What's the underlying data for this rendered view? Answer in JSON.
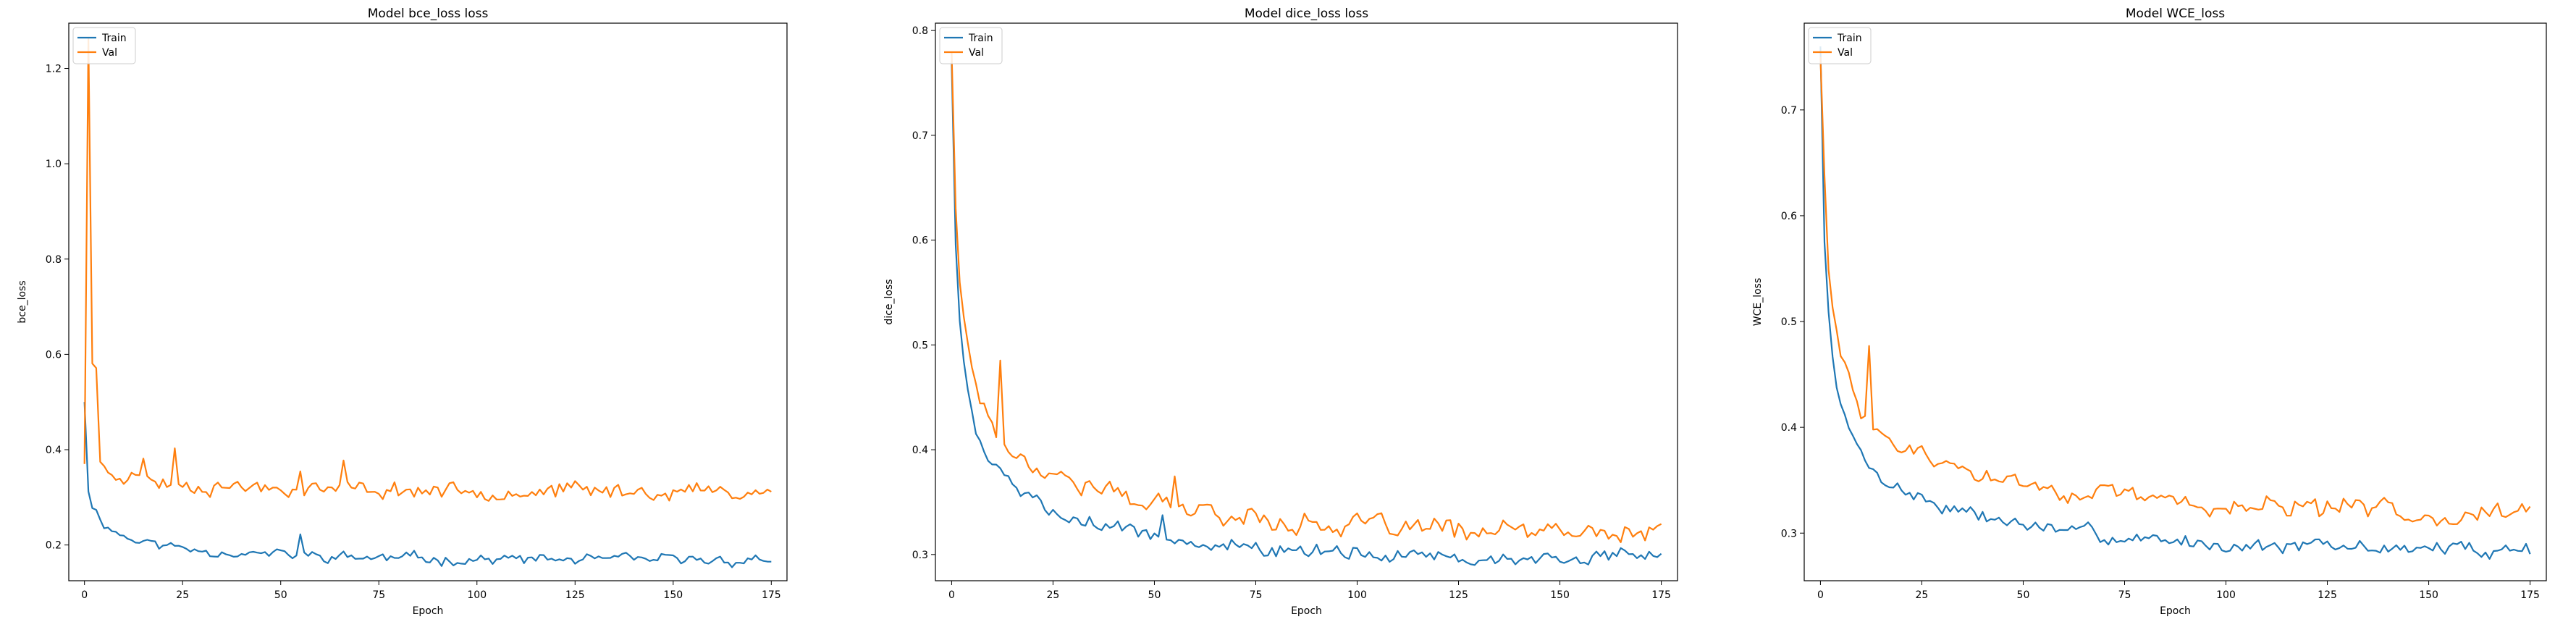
{
  "chart_data": [
    {
      "type": "line",
      "title": "Model bce_loss loss",
      "xlabel": "Epoch",
      "ylabel": "bce_loss",
      "xlim": [
        -4,
        179
      ],
      "ylim": [
        0.125,
        1.295
      ],
      "xticks": [
        0,
        25,
        50,
        75,
        100,
        125,
        150,
        175
      ],
      "yticks": [
        0.2,
        0.4,
        0.6,
        0.8,
        1.0,
        1.2
      ],
      "xtick_labels": [
        "0",
        "25",
        "50",
        "75",
        "100",
        "125",
        "150",
        "175"
      ],
      "ytick_labels": [
        "0.2",
        "0.4",
        "0.6",
        "0.8",
        "1.0",
        "1.2"
      ],
      "legend_position": "upper-left",
      "series": [
        {
          "name": "Train",
          "color": "#1f77b4",
          "start": 0.5,
          "k1": 0.18,
          "r1": 0.4,
          "k2": 0.1,
          "r2": 4.0,
          "k3": 0.06,
          "r3": 30,
          "base": 0.168,
          "noise": 0.008,
          "seed": 11,
          "spikes": [
            [
              55,
              0.045
            ]
          ]
        },
        {
          "name": "Val",
          "color": "#ff7f0e",
          "start": 0.37,
          "k1": 0.09,
          "r1": 0.5,
          "k2": 0.07,
          "r2": 6.0,
          "k3": 0.03,
          "r3": 40,
          "base": 0.312,
          "noise": 0.012,
          "seed": 23,
          "spikes": [
            [
              1,
              0.86
            ],
            [
              2,
              0.19
            ],
            [
              3,
              0.18
            ],
            [
              15,
              0.05
            ],
            [
              23,
              0.07
            ],
            [
              55,
              0.05
            ],
            [
              66,
              0.05
            ]
          ]
        }
      ]
    },
    {
      "type": "line",
      "title": "Model dice_loss loss",
      "xlabel": "Epoch",
      "ylabel": "dice_loss",
      "xlim": [
        -4,
        179
      ],
      "ylim": [
        0.275,
        0.807
      ],
      "xticks": [
        0,
        25,
        50,
        75,
        100,
        125,
        150,
        175
      ],
      "yticks": [
        0.3,
        0.4,
        0.5,
        0.6,
        0.7,
        0.8
      ],
      "xtick_labels": [
        "0",
        "25",
        "50",
        "75",
        "100",
        "125",
        "150",
        "175"
      ],
      "ytick_labels": [
        "0.3",
        "0.4",
        "0.5",
        "0.6",
        "0.7",
        "0.8"
      ],
      "legend_position": "upper-left",
      "series": [
        {
          "name": "Train",
          "color": "#1f77b4",
          "start": 0.77,
          "k1": 0.17,
          "r1": 0.8,
          "k2": 0.2,
          "r2": 4.0,
          "k3": 0.1,
          "r3": 35,
          "base": 0.295,
          "noise": 0.005,
          "seed": 5,
          "spikes": [
            [
              52,
              0.02
            ]
          ]
        },
        {
          "name": "Val",
          "color": "#ff7f0e",
          "start": 0.78,
          "k1": 0.16,
          "r1": 0.8,
          "k2": 0.2,
          "r2": 4.5,
          "k3": 0.11,
          "r3": 40,
          "base": 0.318,
          "noise": 0.007,
          "seed": 17,
          "spikes": [
            [
              12,
              0.07
            ],
            [
              55,
              0.02
            ]
          ]
        }
      ]
    },
    {
      "type": "line",
      "title": "Model WCE_loss",
      "xlabel": "Epoch",
      "ylabel": "WCE_loss",
      "xlim": [
        -4,
        179
      ],
      "ylim": [
        0.255,
        0.782
      ],
      "xticks": [
        0,
        25,
        50,
        75,
        100,
        125,
        150,
        175
      ],
      "yticks": [
        0.3,
        0.4,
        0.5,
        0.6,
        0.7
      ],
      "xtick_labels": [
        "0",
        "25",
        "50",
        "75",
        "100",
        "125",
        "150",
        "175"
      ],
      "ytick_labels": [
        "0.3",
        "0.4",
        "0.5",
        "0.6",
        "0.7"
      ],
      "legend_position": "upper-left",
      "series": [
        {
          "name": "Train",
          "color": "#1f77b4",
          "start": 0.76,
          "k1": 0.16,
          "r1": 0.8,
          "k2": 0.19,
          "r2": 4.0,
          "k3": 0.1,
          "r3": 35,
          "base": 0.284,
          "noise": 0.005,
          "seed": 7,
          "spikes": []
        },
        {
          "name": "Val",
          "color": "#ff7f0e",
          "start": 0.75,
          "k1": 0.14,
          "r1": 0.8,
          "k2": 0.19,
          "r2": 4.5,
          "k3": 0.1,
          "r3": 40,
          "base": 0.318,
          "noise": 0.007,
          "seed": 29,
          "spikes": [
            [
              1,
              0.03
            ],
            [
              12,
              0.07
            ]
          ]
        }
      ]
    }
  ]
}
